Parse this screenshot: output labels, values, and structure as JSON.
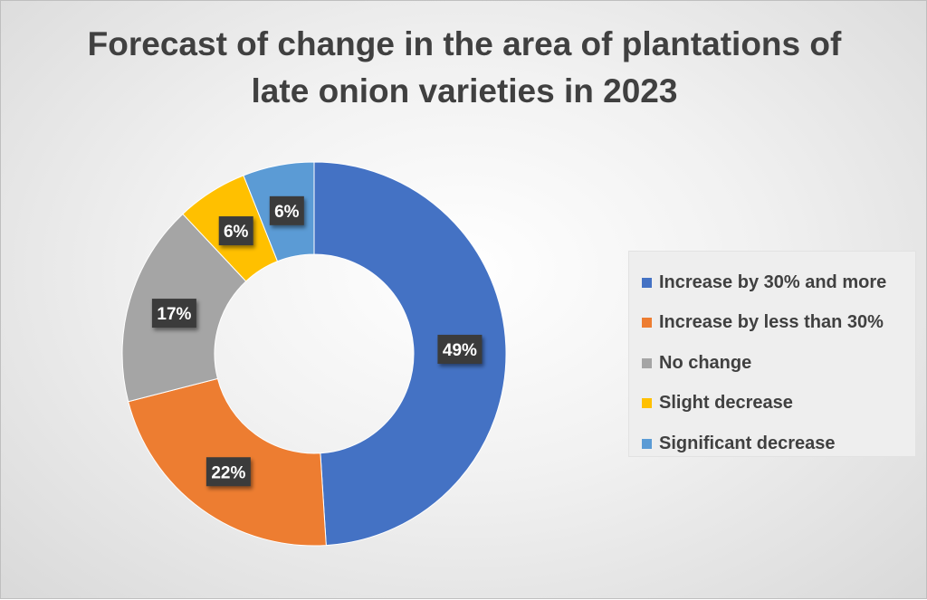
{
  "chart_data": {
    "type": "pie",
    "subtype": "doughnut",
    "title_lines": [
      "Forecast of change in the area of plantations of",
      "late onion varieties in 2023"
    ],
    "categories": [
      "Increase by 30% and more",
      "Increase by less than 30%",
      "No change",
      "Slight decrease",
      "Significant decrease"
    ],
    "values": [
      49,
      22,
      17,
      6,
      6
    ],
    "data_labels": [
      "49%",
      "22%",
      "17%",
      "6%",
      "6%"
    ],
    "colors": [
      "#4472C4",
      "#ED7D31",
      "#A5A5A5",
      "#FFC000",
      "#5B9BD5"
    ],
    "legend_position": "right",
    "start_angle": "top, clockwise"
  }
}
